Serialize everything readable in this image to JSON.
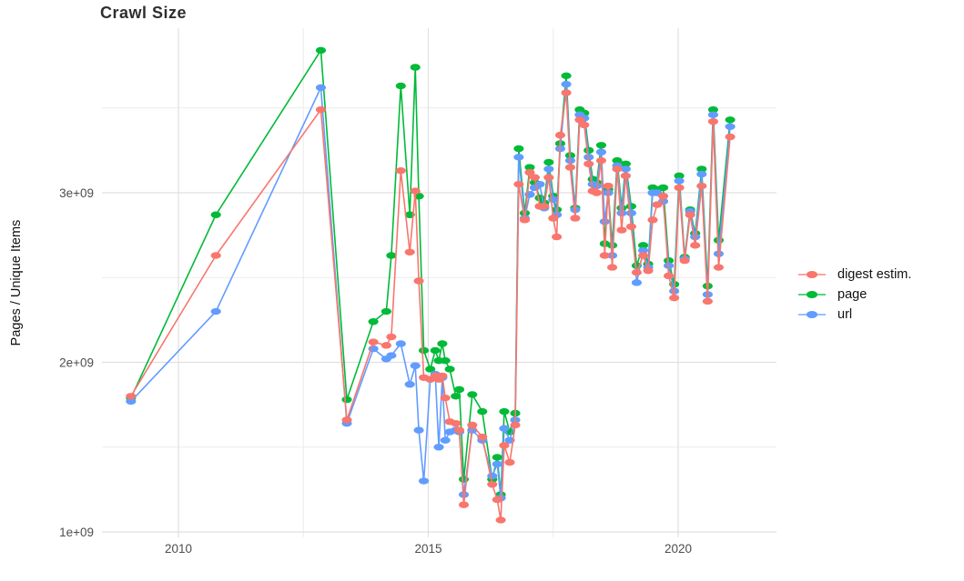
{
  "title": "Crawl Size",
  "ylabel": "Pages / Unique Items",
  "legend": {
    "items": [
      {
        "label": "digest estim.",
        "color": "#F8766D"
      },
      {
        "label": "page",
        "color": "#00BA38"
      },
      {
        "label": "url",
        "color": "#619CFF"
      }
    ]
  },
  "chart_data": {
    "type": "line",
    "title": "Crawl Size",
    "xlabel": "",
    "ylabel": "Pages / Unique Items",
    "y_unit": "count (values below in units of 1e9)",
    "xlim": [
      2008.45,
      2021.95
    ],
    "ylim": [
      1.0,
      4.0
    ],
    "grid": true,
    "legend_position": "right",
    "x_ticks": [
      2010,
      2015,
      2020
    ],
    "x_tick_labels": [
      "2010",
      "2015",
      "2020"
    ],
    "x_minor_ticks": [
      2012.5,
      2017.5
    ],
    "y_ticks": [
      1,
      2,
      3
    ],
    "y_tick_labels": [
      "1e+09",
      "2e+09",
      "3e+09"
    ],
    "y_minor_ticks": [
      1.5,
      2.5,
      3.5
    ],
    "series": [
      {
        "name": "digest estim.",
        "color": "#F8766D",
        "points": [
          [
            2009.05,
            1.8
          ],
          [
            2010.75,
            2.63
          ],
          [
            2012.85,
            3.49
          ],
          [
            2013.37,
            1.66
          ],
          [
            2013.9,
            2.12
          ],
          [
            2014.16,
            2.1
          ],
          [
            2014.26,
            2.15
          ],
          [
            2014.45,
            3.13
          ],
          [
            2014.63,
            2.65
          ],
          [
            2014.74,
            3.01
          ],
          [
            2014.81,
            2.48
          ],
          [
            2014.91,
            1.91
          ],
          [
            2015.04,
            1.9
          ],
          [
            2015.14,
            1.92
          ],
          [
            2015.21,
            1.9
          ],
          [
            2015.28,
            1.92
          ],
          [
            2015.34,
            1.79
          ],
          [
            2015.43,
            1.65
          ],
          [
            2015.55,
            1.64
          ],
          [
            2015.62,
            1.6
          ],
          [
            2015.71,
            1.16
          ],
          [
            2015.88,
            1.63
          ],
          [
            2016.08,
            1.56
          ],
          [
            2016.28,
            1.28
          ],
          [
            2016.38,
            1.19
          ],
          [
            2016.45,
            1.07
          ],
          [
            2016.52,
            1.51
          ],
          [
            2016.63,
            1.41
          ],
          [
            2016.74,
            1.63
          ],
          [
            2016.81,
            3.05
          ],
          [
            2016.93,
            2.84
          ],
          [
            2017.03,
            3.12
          ],
          [
            2017.13,
            3.09
          ],
          [
            2017.23,
            2.92
          ],
          [
            2017.32,
            2.92
          ],
          [
            2017.41,
            3.09
          ],
          [
            2017.5,
            2.85
          ],
          [
            2017.57,
            2.74
          ],
          [
            2017.64,
            3.34
          ],
          [
            2017.76,
            3.59
          ],
          [
            2017.84,
            3.15
          ],
          [
            2017.94,
            2.85
          ],
          [
            2018.03,
            3.43
          ],
          [
            2018.12,
            3.4
          ],
          [
            2018.21,
            3.17
          ],
          [
            2018.29,
            3.01
          ],
          [
            2018.37,
            3.0
          ],
          [
            2018.46,
            3.19
          ],
          [
            2018.53,
            2.63
          ],
          [
            2018.6,
            3.04
          ],
          [
            2018.68,
            2.56
          ],
          [
            2018.78,
            3.14
          ],
          [
            2018.87,
            2.78
          ],
          [
            2018.95,
            3.1
          ],
          [
            2019.06,
            2.8
          ],
          [
            2019.17,
            2.53
          ],
          [
            2019.3,
            2.63
          ],
          [
            2019.4,
            2.54
          ],
          [
            2019.49,
            2.84
          ],
          [
            2019.58,
            2.93
          ],
          [
            2019.7,
            2.98
          ],
          [
            2019.81,
            2.51
          ],
          [
            2019.92,
            2.38
          ],
          [
            2020.02,
            3.03
          ],
          [
            2020.13,
            2.6
          ],
          [
            2020.24,
            2.87
          ],
          [
            2020.34,
            2.69
          ],
          [
            2020.47,
            3.04
          ],
          [
            2020.59,
            2.36
          ],
          [
            2020.7,
            3.42
          ],
          [
            2020.81,
            2.56
          ],
          [
            2021.04,
            3.33
          ]
        ]
      },
      {
        "name": "page",
        "color": "#00BA38",
        "points": [
          [
            2009.05,
            1.79
          ],
          [
            2010.75,
            2.87
          ],
          [
            2012.85,
            3.84
          ],
          [
            2013.37,
            1.78
          ],
          [
            2013.9,
            2.24
          ],
          [
            2014.16,
            2.3
          ],
          [
            2014.26,
            2.63
          ],
          [
            2014.45,
            3.63
          ],
          [
            2014.63,
            2.87
          ],
          [
            2014.74,
            3.74
          ],
          [
            2014.81,
            2.98
          ],
          [
            2014.91,
            2.07
          ],
          [
            2015.04,
            1.96
          ],
          [
            2015.14,
            2.07
          ],
          [
            2015.21,
            2.01
          ],
          [
            2015.28,
            2.11
          ],
          [
            2015.34,
            2.01
          ],
          [
            2015.43,
            1.96
          ],
          [
            2015.55,
            1.8
          ],
          [
            2015.62,
            1.84
          ],
          [
            2015.71,
            1.31
          ],
          [
            2015.88,
            1.81
          ],
          [
            2016.08,
            1.71
          ],
          [
            2016.28,
            1.31
          ],
          [
            2016.38,
            1.44
          ],
          [
            2016.45,
            1.22
          ],
          [
            2016.52,
            1.71
          ],
          [
            2016.63,
            1.59
          ],
          [
            2016.74,
            1.7
          ],
          [
            2016.81,
            3.26
          ],
          [
            2016.93,
            2.88
          ],
          [
            2017.03,
            3.15
          ],
          [
            2017.13,
            3.06
          ],
          [
            2017.23,
            2.97
          ],
          [
            2017.32,
            2.94
          ],
          [
            2017.41,
            3.18
          ],
          [
            2017.5,
            2.98
          ],
          [
            2017.57,
            2.9
          ],
          [
            2017.64,
            3.29
          ],
          [
            2017.76,
            3.69
          ],
          [
            2017.84,
            3.22
          ],
          [
            2017.94,
            2.91
          ],
          [
            2018.03,
            3.49
          ],
          [
            2018.12,
            3.47
          ],
          [
            2018.21,
            3.25
          ],
          [
            2018.29,
            3.08
          ],
          [
            2018.37,
            3.06
          ],
          [
            2018.46,
            3.28
          ],
          [
            2018.53,
            2.7
          ],
          [
            2018.6,
            3.02
          ],
          [
            2018.68,
            2.69
          ],
          [
            2018.78,
            3.19
          ],
          [
            2018.87,
            2.91
          ],
          [
            2018.95,
            3.17
          ],
          [
            2019.06,
            2.92
          ],
          [
            2019.17,
            2.57
          ],
          [
            2019.3,
            2.69
          ],
          [
            2019.4,
            2.58
          ],
          [
            2019.49,
            3.03
          ],
          [
            2019.58,
            3.02
          ],
          [
            2019.7,
            3.03
          ],
          [
            2019.81,
            2.6
          ],
          [
            2019.92,
            2.46
          ],
          [
            2020.02,
            3.1
          ],
          [
            2020.13,
            2.62
          ],
          [
            2020.24,
            2.9
          ],
          [
            2020.34,
            2.76
          ],
          [
            2020.47,
            3.14
          ],
          [
            2020.59,
            2.45
          ],
          [
            2020.7,
            3.49
          ],
          [
            2020.81,
            2.72
          ],
          [
            2021.04,
            3.43
          ]
        ]
      },
      {
        "name": "url",
        "color": "#619CFF",
        "points": [
          [
            2009.05,
            1.77
          ],
          [
            2010.75,
            2.3
          ],
          [
            2012.85,
            3.62
          ],
          [
            2013.37,
            1.64
          ],
          [
            2013.9,
            2.08
          ],
          [
            2014.16,
            2.02
          ],
          [
            2014.26,
            2.04
          ],
          [
            2014.45,
            2.11
          ],
          [
            2014.63,
            1.87
          ],
          [
            2014.74,
            1.98
          ],
          [
            2014.81,
            1.6
          ],
          [
            2014.91,
            1.3
          ],
          [
            2015.04,
            1.9
          ],
          [
            2015.14,
            1.93
          ],
          [
            2015.21,
            1.5
          ],
          [
            2015.28,
            1.91
          ],
          [
            2015.34,
            1.54
          ],
          [
            2015.43,
            1.59
          ],
          [
            2015.55,
            1.6
          ],
          [
            2015.62,
            1.59
          ],
          [
            2015.71,
            1.22
          ],
          [
            2015.88,
            1.6
          ],
          [
            2016.08,
            1.54
          ],
          [
            2016.28,
            1.33
          ],
          [
            2016.38,
            1.4
          ],
          [
            2016.45,
            1.2
          ],
          [
            2016.52,
            1.61
          ],
          [
            2016.63,
            1.54
          ],
          [
            2016.74,
            1.66
          ],
          [
            2016.81,
            3.21
          ],
          [
            2016.93,
            2.85
          ],
          [
            2017.03,
            2.99
          ],
          [
            2017.13,
            3.03
          ],
          [
            2017.23,
            3.05
          ],
          [
            2017.32,
            2.91
          ],
          [
            2017.41,
            3.14
          ],
          [
            2017.5,
            2.96
          ],
          [
            2017.57,
            2.87
          ],
          [
            2017.64,
            3.26
          ],
          [
            2017.76,
            3.64
          ],
          [
            2017.84,
            3.19
          ],
          [
            2017.94,
            2.9
          ],
          [
            2018.03,
            3.46
          ],
          [
            2018.12,
            3.44
          ],
          [
            2018.21,
            3.21
          ],
          [
            2018.29,
            3.05
          ],
          [
            2018.37,
            3.04
          ],
          [
            2018.46,
            3.24
          ],
          [
            2018.53,
            2.83
          ],
          [
            2018.6,
            3.0
          ],
          [
            2018.68,
            2.63
          ],
          [
            2018.78,
            3.16
          ],
          [
            2018.87,
            2.88
          ],
          [
            2018.95,
            3.14
          ],
          [
            2019.06,
            2.88
          ],
          [
            2019.17,
            2.47
          ],
          [
            2019.3,
            2.66
          ],
          [
            2019.4,
            2.56
          ],
          [
            2019.49,
            3.0
          ],
          [
            2019.58,
            3.0
          ],
          [
            2019.7,
            2.95
          ],
          [
            2019.81,
            2.57
          ],
          [
            2019.92,
            2.42
          ],
          [
            2020.02,
            3.07
          ],
          [
            2020.13,
            2.61
          ],
          [
            2020.24,
            2.89
          ],
          [
            2020.34,
            2.74
          ],
          [
            2020.47,
            3.11
          ],
          [
            2020.59,
            2.4
          ],
          [
            2020.7,
            3.46
          ],
          [
            2020.81,
            2.64
          ],
          [
            2021.04,
            3.39
          ]
        ]
      }
    ]
  }
}
